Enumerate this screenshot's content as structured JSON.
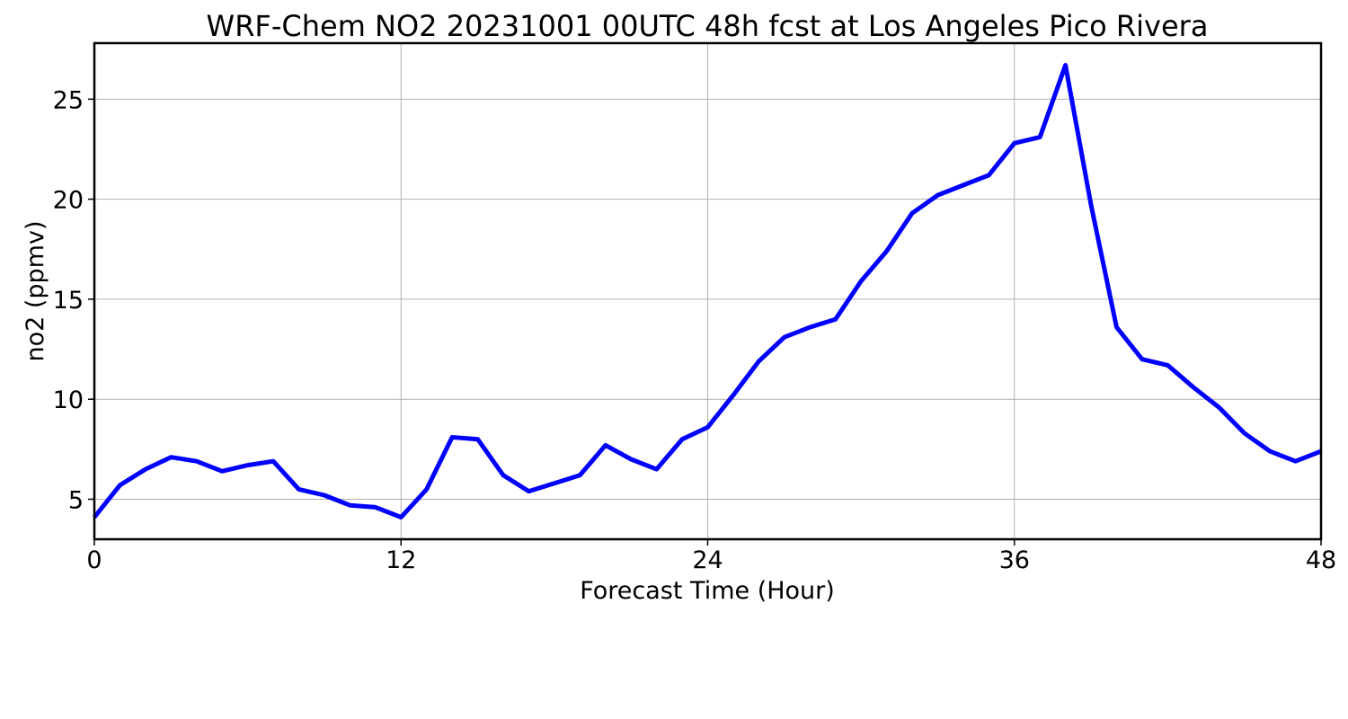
{
  "chart_data": {
    "type": "line",
    "title": "WRF-Chem NO2  20231001 00UTC 48h fcst at Los Angeles Pico Rivera",
    "xlabel": "Forecast Time (Hour)",
    "ylabel": "no2  (ppmv)",
    "xlim": [
      0,
      48
    ],
    "ylim": [
      3.0,
      27.8
    ],
    "xticks": [
      0,
      12,
      24,
      36,
      48
    ],
    "yticks": [
      5,
      10,
      15,
      20,
      25
    ],
    "grid": true,
    "series": [
      {
        "color": "#0000ff",
        "x": [
          0,
          1,
          2,
          3,
          4,
          5,
          6,
          7,
          8,
          9,
          10,
          11,
          12,
          13,
          14,
          15,
          16,
          17,
          18,
          19,
          20,
          21,
          22,
          23,
          24,
          25,
          26,
          27,
          28,
          29,
          30,
          31,
          32,
          33,
          34,
          35,
          36,
          37,
          38,
          39,
          40,
          41,
          42,
          43,
          44,
          45,
          46,
          47,
          48
        ],
        "values": [
          4.1,
          5.7,
          6.5,
          7.1,
          6.9,
          6.4,
          6.7,
          6.9,
          5.5,
          5.2,
          4.7,
          4.6,
          4.1,
          5.5,
          8.1,
          8.0,
          6.2,
          5.4,
          5.8,
          6.2,
          7.7,
          7.0,
          6.5,
          8.0,
          8.6,
          10.2,
          11.9,
          13.1,
          13.6,
          14.0,
          15.9,
          17.4,
          19.3,
          20.2,
          20.7,
          21.2,
          22.8,
          23.1,
          26.7,
          19.7,
          13.6,
          12.0,
          11.7,
          10.6,
          9.6,
          8.3,
          7.4,
          6.9,
          7.4
        ]
      }
    ]
  }
}
